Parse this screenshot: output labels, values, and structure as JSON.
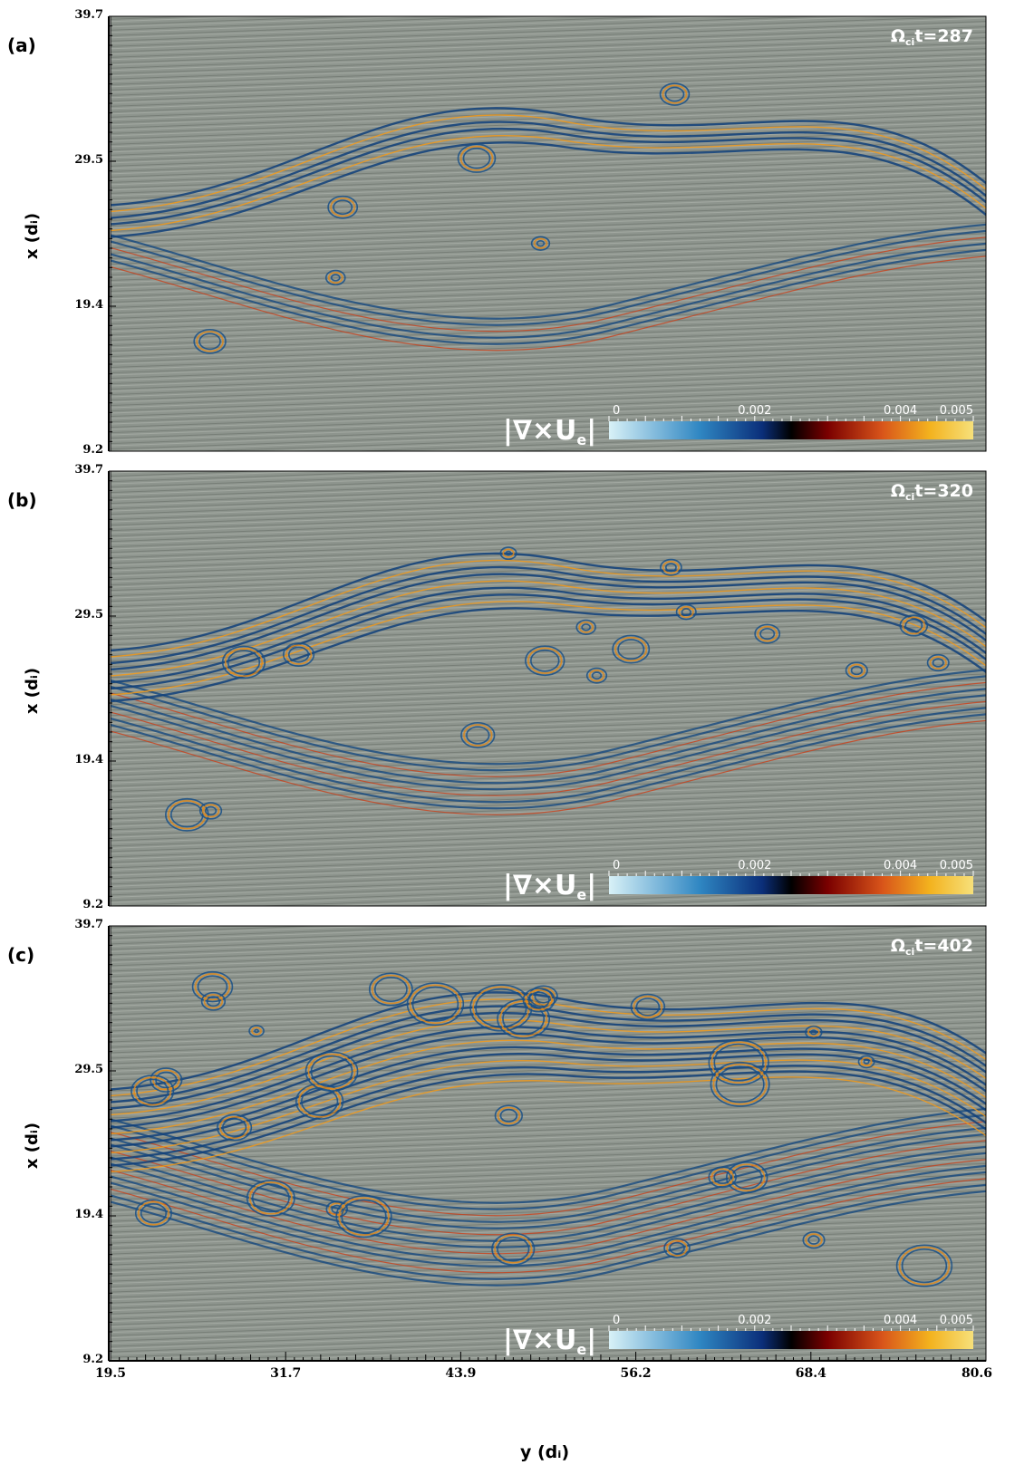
{
  "chart_data": [
    {
      "type": "heatmap",
      "panel": "(a)",
      "annotation": "Ω_ci t=287",
      "time": 287,
      "ylabel": "x (d_i)",
      "yticks": [
        "39.7",
        "29.5",
        "19.4",
        "9.2"
      ],
      "ylim": [
        9.2,
        39.7
      ],
      "xlim": [
        19.5,
        80.6
      ],
      "colorbar": {
        "label": "|∇×U_e|",
        "ticks": [
          "0",
          "0.002",
          "0.004",
          "0.005"
        ],
        "range": [
          0,
          0.005
        ]
      }
    },
    {
      "type": "heatmap",
      "panel": "(b)",
      "annotation": "Ω_ci t=320",
      "time": 320,
      "ylabel": "x (d_i)",
      "yticks": [
        "39.7",
        "29.5",
        "19.4",
        "9.2"
      ],
      "ylim": [
        9.2,
        39.7
      ],
      "xlim": [
        19.5,
        80.6
      ],
      "colorbar": {
        "label": "|∇×U_e|",
        "ticks": [
          "0",
          "0.002",
          "0.004",
          "0.005"
        ],
        "range": [
          0,
          0.005
        ]
      }
    },
    {
      "type": "heatmap",
      "panel": "(c)",
      "annotation": "Ω_ci t=402",
      "time": 402,
      "ylabel": "x (d_i)",
      "yticks": [
        "39.7",
        "29.5",
        "19.4",
        "9.2"
      ],
      "ylim": [
        9.2,
        39.7
      ],
      "xlim": [
        19.5,
        80.6
      ],
      "xlabel": "y (d_i)",
      "xticks": [
        "19.5",
        "31.7",
        "43.9",
        "56.2",
        "68.4",
        "80.6"
      ],
      "colorbar": {
        "label": "|∇×U_e|",
        "ticks": [
          "0",
          "0.002",
          "0.004",
          "0.005"
        ],
        "range": [
          0,
          0.005
        ]
      }
    }
  ],
  "labels": {
    "panel_a": "(a)",
    "panel_b": "(b)",
    "panel_c": "(c)",
    "ylabel": "x (dᵢ)",
    "xlabel": "y (dᵢ)",
    "time_a": "=287",
    "time_b": "=320",
    "time_c": "=402",
    "omega": "Ω",
    "omega_sub": "ci",
    "t": "t",
    "cbar_label": "|∇×U",
    "cbar_sub": "e",
    "cbar_close": "|"
  },
  "colors": {
    "background": "#8e958e",
    "vortex_blue": "#0f3f7a",
    "vortex_orange": "#f29a1a",
    "cbar_stops": [
      "#d8f1f7",
      "#2f86c2",
      "#0b2f7a",
      "#000000",
      "#7a0000",
      "#d8541a",
      "#f3b21e",
      "#f6e07a"
    ]
  }
}
